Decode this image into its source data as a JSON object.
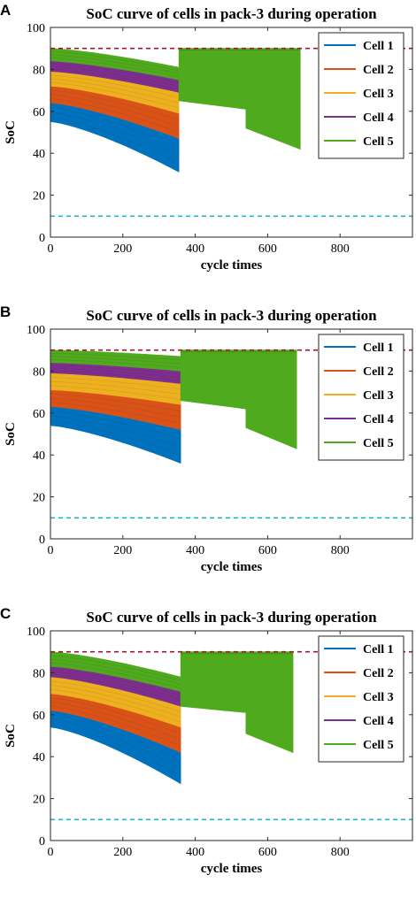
{
  "colors": {
    "cell1": "#0072BD",
    "cell2": "#D95319",
    "cell3": "#EDB120",
    "cell4": "#7E2F8E",
    "cell5": "#4FAA1E",
    "upper_limit": "#A2142F",
    "lower_limit": "#1FB5C8"
  },
  "chart_data": [
    {
      "panel_label": "A",
      "type": "area",
      "title": "SoC curve of cells in pack-3 during operation",
      "xlabel": "cycle times",
      "ylabel": "SoC",
      "xlim": [
        0,
        1000
      ],
      "ylim": [
        0,
        100
      ],
      "xticks": [
        "0",
        "200",
        "400",
        "600",
        "800"
      ],
      "yticks": [
        "0",
        "20",
        "40",
        "60",
        "80",
        "100"
      ],
      "grid": false,
      "legend_position": "top-right",
      "legend": [
        "Cell 1",
        "Cell 2",
        "Cell 3",
        "Cell 4",
        "Cell 5"
      ],
      "reference_lines": [
        {
          "y": 90,
          "style": "dashed"
        },
        {
          "y": 10,
          "style": "dashed"
        }
      ],
      "phase1": {
        "x_end": 355,
        "bands": [
          {
            "series": "Cell 1",
            "start": [
              55,
              64
            ],
            "end": [
              31,
              47
            ]
          },
          {
            "series": "Cell 2",
            "start": [
              64,
              72
            ],
            "end": [
              47,
              59
            ]
          },
          {
            "series": "Cell 3",
            "start": [
              72,
              79
            ],
            "end": [
              59,
              69
            ]
          },
          {
            "series": "Cell 4",
            "start": [
              79,
              84
            ],
            "end": [
              69,
              75
            ]
          },
          {
            "series": "Cell 5",
            "start": [
              84,
              90
            ],
            "end": [
              75,
              81
            ]
          }
        ]
      },
      "phase2": {
        "series": "Cell 5",
        "x_start": 355,
        "x_step": 540,
        "x_end": 690,
        "top": 90,
        "bottom": [
          [
            355,
            65
          ],
          [
            540,
            61
          ],
          [
            540,
            52
          ],
          [
            690,
            42
          ]
        ]
      }
    },
    {
      "panel_label": "B",
      "type": "area",
      "title": "SoC curve of cells in pack-3 during operation",
      "xlabel": "cycle times",
      "ylabel": "SoC",
      "xlim": [
        0,
        1000
      ],
      "ylim": [
        0,
        100
      ],
      "xticks": [
        "0",
        "200",
        "400",
        "600",
        "800"
      ],
      "yticks": [
        "0",
        "20",
        "40",
        "60",
        "80",
        "100"
      ],
      "grid": false,
      "legend_position": "top-right",
      "legend": [
        "Cell 1",
        "Cell 2",
        "Cell 3",
        "Cell 4",
        "Cell 5"
      ],
      "reference_lines": [
        {
          "y": 90,
          "style": "dashed"
        },
        {
          "y": 10,
          "style": "dashed"
        }
      ],
      "phase1": {
        "x_end": 360,
        "bands": [
          {
            "series": "Cell 1",
            "start": [
              54,
              63
            ],
            "end": [
              36,
              52
            ]
          },
          {
            "series": "Cell 2",
            "start": [
              63,
              71
            ],
            "end": [
              52,
              64
            ]
          },
          {
            "series": "Cell 3",
            "start": [
              71,
              79
            ],
            "end": [
              64,
              74
            ]
          },
          {
            "series": "Cell 4",
            "start": [
              79,
              84
            ],
            "end": [
              74,
              80
            ]
          },
          {
            "series": "Cell 5",
            "start": [
              84,
              90
            ],
            "end": [
              80,
              87
            ]
          }
        ]
      },
      "phase2": {
        "series": "Cell 5",
        "x_start": 360,
        "x_step": 540,
        "x_end": 680,
        "top": 90,
        "bottom": [
          [
            360,
            66
          ],
          [
            540,
            62
          ],
          [
            540,
            53
          ],
          [
            680,
            43
          ]
        ]
      }
    },
    {
      "panel_label": "C",
      "type": "area",
      "title": "SoC curve of cells in pack-3 during operation",
      "xlabel": "cycle times",
      "ylabel": "SoC",
      "xlim": [
        0,
        1000
      ],
      "ylim": [
        0,
        100
      ],
      "xticks": [
        "0",
        "200",
        "400",
        "600",
        "800"
      ],
      "yticks": [
        "0",
        "20",
        "40",
        "60",
        "80",
        "100"
      ],
      "grid": false,
      "legend_position": "top-right",
      "legend": [
        "Cell 1",
        "Cell 2",
        "Cell 3",
        "Cell 4",
        "Cell 5"
      ],
      "reference_lines": [
        {
          "y": 90,
          "style": "dashed"
        },
        {
          "y": 10,
          "style": "dashed"
        }
      ],
      "phase1": {
        "x_end": 360,
        "bands": [
          {
            "series": "Cell 1",
            "start": [
              54,
              62
            ],
            "end": [
              27,
              42
            ]
          },
          {
            "series": "Cell 2",
            "start": [
              62,
              70
            ],
            "end": [
              42,
              54
            ]
          },
          {
            "series": "Cell 3",
            "start": [
              70,
              78
            ],
            "end": [
              54,
              64
            ]
          },
          {
            "series": "Cell 4",
            "start": [
              78,
              83
            ],
            "end": [
              64,
              71
            ]
          },
          {
            "series": "Cell 5",
            "start": [
              83,
              90
            ],
            "end": [
              71,
              78
            ]
          }
        ]
      },
      "phase2": {
        "series": "Cell 5",
        "x_start": 360,
        "x_step": 540,
        "x_end": 670,
        "top": 90,
        "bottom": [
          [
            360,
            64
          ],
          [
            540,
            61
          ],
          [
            540,
            51
          ],
          [
            670,
            42
          ]
        ]
      }
    }
  ]
}
